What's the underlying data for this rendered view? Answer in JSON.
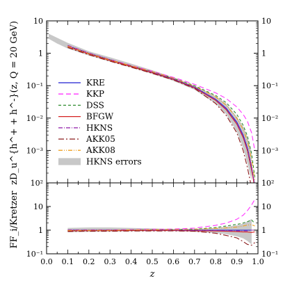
{
  "chart_data": [
    {
      "type": "line",
      "panel": "top",
      "ylabel": "zD_u^{h^+ + h^-}(z, Q = 20 GeV)",
      "yscale": "log",
      "ylim": [
        0.0001,
        10
      ],
      "xlim": [
        0.0,
        1.0
      ],
      "ytick_labels": [
        "10",
        "1",
        "10⁻¹",
        "10⁻²",
        "10⁻³"
      ],
      "ytick_labels_right": [
        "10",
        "1",
        "10⁻¹",
        "10⁻²",
        "10⁻³"
      ],
      "band": {
        "name": "HKNS errors",
        "x": [
          0.01,
          0.05,
          0.1,
          0.2,
          0.3,
          0.4,
          0.5,
          0.6,
          0.7,
          0.8,
          0.85,
          0.9,
          0.93,
          0.95,
          0.97
        ],
        "lower": [
          2.8,
          2.0,
          1.4,
          0.85,
          0.55,
          0.36,
          0.23,
          0.14,
          0.075,
          0.028,
          0.013,
          0.0038,
          0.0012,
          0.0004,
          0.00012
        ],
        "upper": [
          4.0,
          3.0,
          2.1,
          1.15,
          0.75,
          0.48,
          0.3,
          0.18,
          0.1,
          0.048,
          0.028,
          0.011,
          0.0055,
          0.0026,
          0.0009
        ]
      },
      "series": [
        {
          "name": "KRE",
          "color": "#1f1fd0",
          "dash": "",
          "x": [
            0.1,
            0.2,
            0.3,
            0.4,
            0.5,
            0.6,
            0.7,
            0.8,
            0.85,
            0.9,
            0.93,
            0.95,
            0.97,
            0.985
          ],
          "y": [
            1.7,
            1.0,
            0.63,
            0.4,
            0.26,
            0.16,
            0.09,
            0.038,
            0.02,
            0.0075,
            0.003,
            0.0012,
            0.0003,
            8e-05
          ]
        },
        {
          "name": "KKP",
          "color": "#ff33ff",
          "dash": "7,4",
          "x": [
            0.1,
            0.2,
            0.3,
            0.4,
            0.5,
            0.6,
            0.7,
            0.8,
            0.85,
            0.9,
            0.93,
            0.95,
            0.97,
            0.985
          ],
          "y": [
            1.7,
            1.0,
            0.64,
            0.42,
            0.28,
            0.18,
            0.11,
            0.06,
            0.04,
            0.022,
            0.013,
            0.008,
            0.0035,
            0.001
          ]
        },
        {
          "name": "DSS",
          "color": "#2e8b2e",
          "dash": "4,3",
          "x": [
            0.1,
            0.2,
            0.3,
            0.4,
            0.5,
            0.6,
            0.7,
            0.8,
            0.85,
            0.9,
            0.93,
            0.95,
            0.97,
            0.985
          ],
          "y": [
            1.6,
            0.98,
            0.62,
            0.41,
            0.27,
            0.17,
            0.1,
            0.05,
            0.03,
            0.013,
            0.006,
            0.0028,
            0.0008,
            0.00015
          ]
        },
        {
          "name": "BFGW",
          "color": "#d42020",
          "dash": "",
          "x": [
            0.1,
            0.2,
            0.3,
            0.4,
            0.5,
            0.6,
            0.7,
            0.8,
            0.85,
            0.9,
            0.93,
            0.95,
            0.97,
            0.985
          ],
          "y": [
            1.6,
            0.95,
            0.6,
            0.39,
            0.25,
            0.155,
            0.085,
            0.035,
            0.018,
            0.0065,
            0.0025,
            0.001,
            0.00025,
            7e-05
          ]
        },
        {
          "name": "HKNS",
          "color": "#9a2fb0",
          "dash": "6,2,1,2",
          "x": [
            0.1,
            0.2,
            0.3,
            0.4,
            0.5,
            0.6,
            0.7,
            0.8,
            0.85,
            0.9,
            0.93,
            0.95,
            0.97,
            0.985
          ],
          "y": [
            1.75,
            1.02,
            0.64,
            0.41,
            0.26,
            0.16,
            0.088,
            0.037,
            0.019,
            0.007,
            0.0028,
            0.0011,
            0.0003,
            8e-05
          ]
        },
        {
          "name": "AKK05",
          "color": "#8b1a1a",
          "dash": "8,3,2,3",
          "x": [
            0.1,
            0.2,
            0.3,
            0.4,
            0.5,
            0.6,
            0.7,
            0.8,
            0.85,
            0.9,
            0.93,
            0.95,
            0.97,
            0.985
          ],
          "y": [
            1.5,
            0.9,
            0.57,
            0.37,
            0.24,
            0.15,
            0.082,
            0.028,
            0.012,
            0.0035,
            0.001,
            0.0003,
            7e-05,
            2e-05
          ]
        },
        {
          "name": "AKK08",
          "color": "#f0a020",
          "dash": "6,2,1,2,1,2",
          "x": [
            0.1,
            0.2,
            0.3,
            0.4,
            0.5,
            0.6,
            0.7,
            0.8,
            0.85,
            0.9,
            0.93,
            0.95,
            0.97,
            0.985
          ],
          "y": [
            1.65,
            0.98,
            0.62,
            0.41,
            0.27,
            0.17,
            0.095,
            0.045,
            0.025,
            0.01,
            0.0045,
            0.002,
            0.0005,
            0.00012
          ]
        }
      ],
      "legend": {
        "placement": "lower-left",
        "entries": [
          "KRE",
          "KKP",
          "DSS",
          "BFGW",
          "HKNS",
          "AKK05",
          "AKK08",
          "HKNS errors"
        ]
      }
    },
    {
      "type": "line",
      "panel": "bottom",
      "ylabel": "FF_i/Kretzer",
      "xlabel": "z",
      "yscale": "log",
      "ylim": [
        0.1,
        100
      ],
      "xlim": [
        0.0,
        1.0
      ],
      "xtick_labels": [
        "0.0",
        "0.1",
        "0.2",
        "0.3",
        "0.4",
        "0.5",
        "0.6",
        "0.7",
        "0.8",
        "0.9",
        "1.0"
      ],
      "ytick_labels": [
        "10²",
        "10",
        "1",
        "10⁻¹"
      ],
      "ytick_labels_right": [
        "10²",
        "10",
        "1",
        "10⁻¹"
      ],
      "band": {
        "name": "HKNS errors",
        "x": [
          0.1,
          0.2,
          0.3,
          0.4,
          0.5,
          0.6,
          0.7,
          0.8,
          0.85,
          0.9,
          0.93,
          0.95,
          0.97
        ],
        "lower": [
          0.82,
          0.85,
          0.87,
          0.89,
          0.9,
          0.9,
          0.85,
          0.75,
          0.68,
          0.55,
          0.45,
          0.35,
          0.25
        ],
        "upper": [
          1.25,
          1.3,
          1.3,
          1.25,
          1.18,
          1.12,
          1.12,
          1.25,
          1.4,
          1.6,
          1.9,
          2.3,
          3.0
        ]
      },
      "series": [
        {
          "name": "KRE",
          "color": "#1f1fd0",
          "dash": "",
          "x": [
            0.1,
            0.2,
            0.3,
            0.4,
            0.5,
            0.6,
            0.7,
            0.8,
            0.85,
            0.9,
            0.93,
            0.95,
            0.97,
            0.985
          ],
          "y": [
            1,
            1,
            1,
            1,
            1,
            1,
            1,
            1,
            1,
            1,
            1,
            1,
            1,
            1
          ]
        },
        {
          "name": "KKP",
          "color": "#ff33ff",
          "dash": "7,4",
          "x": [
            0.1,
            0.2,
            0.3,
            0.4,
            0.5,
            0.6,
            0.7,
            0.8,
            0.85,
            0.9,
            0.93,
            0.95,
            0.97,
            0.985
          ],
          "y": [
            1.0,
            1.0,
            1.02,
            1.05,
            1.08,
            1.12,
            1.22,
            1.6,
            2.0,
            2.9,
            4.3,
            6.7,
            11.7,
            20
          ]
        },
        {
          "name": "DSS",
          "color": "#2e8b2e",
          "dash": "4,3",
          "x": [
            0.1,
            0.2,
            0.3,
            0.4,
            0.5,
            0.6,
            0.7,
            0.8,
            0.85,
            0.9,
            0.93,
            0.95,
            0.97,
            0.985
          ],
          "y": [
            0.94,
            0.98,
            0.98,
            1.02,
            1.04,
            1.06,
            1.1,
            1.3,
            1.5,
            1.75,
            2.0,
            2.3,
            2.7,
            1.9
          ]
        },
        {
          "name": "BFGW",
          "color": "#d42020",
          "dash": "",
          "x": [
            0.1,
            0.2,
            0.3,
            0.4,
            0.5,
            0.6,
            0.7,
            0.8,
            0.85,
            0.9,
            0.93,
            0.95,
            0.97,
            0.985
          ],
          "y": [
            0.94,
            0.95,
            0.95,
            0.97,
            0.96,
            0.97,
            0.94,
            0.92,
            0.9,
            0.87,
            0.84,
            0.83,
            0.8,
            0.85
          ]
        },
        {
          "name": "HKNS",
          "color": "#9a2fb0",
          "dash": "6,2,1,2",
          "x": [
            0.1,
            0.2,
            0.3,
            0.4,
            0.5,
            0.6,
            0.7,
            0.8,
            0.85,
            0.9,
            0.93,
            0.95,
            0.97,
            0.985
          ],
          "y": [
            1.03,
            1.02,
            1.02,
            1.02,
            1.0,
            1.0,
            0.98,
            0.97,
            0.95,
            0.93,
            0.93,
            0.92,
            1.0,
            1.0
          ]
        },
        {
          "name": "AKK05",
          "color": "#8b1a1a",
          "dash": "8,3,2,3",
          "x": [
            0.1,
            0.2,
            0.3,
            0.4,
            0.5,
            0.6,
            0.7,
            0.8,
            0.85,
            0.9,
            0.93,
            0.95,
            0.97,
            0.985
          ],
          "y": [
            0.88,
            0.9,
            0.9,
            0.92,
            0.92,
            0.93,
            0.9,
            0.74,
            0.6,
            0.47,
            0.33,
            0.25,
            0.23,
            0.3
          ]
        },
        {
          "name": "AKK08",
          "color": "#f0a020",
          "dash": "6,2,1,2,1,2",
          "x": [
            0.1,
            0.2,
            0.3,
            0.4,
            0.5,
            0.6,
            0.7,
            0.8,
            0.85,
            0.9,
            0.93,
            0.95,
            0.97,
            0.985
          ],
          "y": [
            0.97,
            0.98,
            0.98,
            1.02,
            1.04,
            1.06,
            1.08,
            1.2,
            1.25,
            1.35,
            1.5,
            1.65,
            1.7,
            1.5
          ]
        }
      ]
    }
  ]
}
